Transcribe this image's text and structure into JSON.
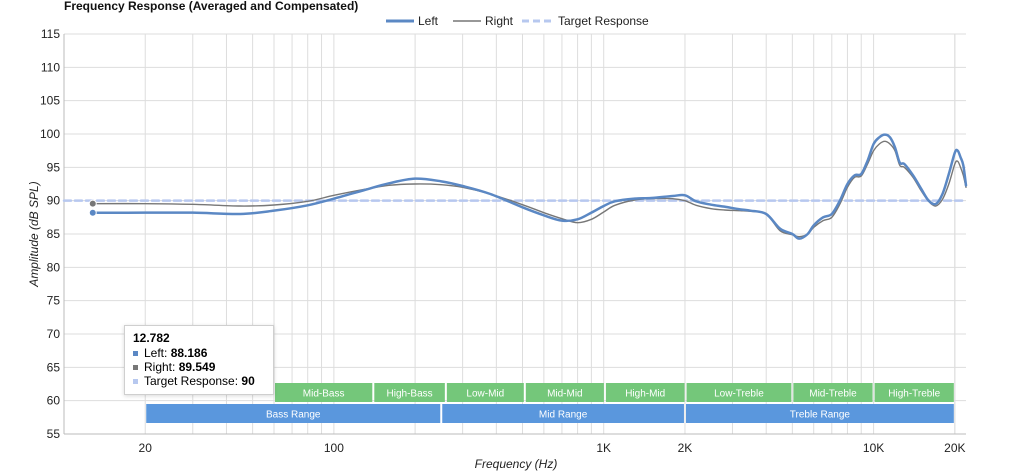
{
  "chart_data": {
    "type": "line",
    "title": "Frequency Response (Averaged and Compensated)",
    "xlabel": "Frequency (Hz)",
    "ylabel": "Amplitude (dB SPL)",
    "x_scale": "log",
    "xlim": [
      10,
      22000
    ],
    "ylim": [
      55,
      115
    ],
    "y_ticks": [
      55,
      60,
      65,
      70,
      75,
      80,
      85,
      90,
      95,
      100,
      105,
      110,
      115
    ],
    "x_tick_labels": [
      {
        "value": 20,
        "label": "20"
      },
      {
        "value": 100,
        "label": "100"
      },
      {
        "value": 1000,
        "label": "1K"
      },
      {
        "value": 2000,
        "label": "2K"
      },
      {
        "value": 10000,
        "label": "10K"
      },
      {
        "value": 20000,
        "label": "20K"
      }
    ],
    "grid": true,
    "legend_position": "top-center",
    "series": [
      {
        "name": "Left",
        "color": "#5b88c4",
        "style": "solid",
        "points": [
          [
            12.782,
            88.186
          ],
          [
            20,
            88.2
          ],
          [
            30,
            88.2
          ],
          [
            45,
            88.0
          ],
          [
            60,
            88.5
          ],
          [
            80,
            89.3
          ],
          [
            100,
            90.3
          ],
          [
            130,
            91.6
          ],
          [
            160,
            92.6
          ],
          [
            200,
            93.3
          ],
          [
            250,
            92.9
          ],
          [
            300,
            92.2
          ],
          [
            380,
            91.0
          ],
          [
            500,
            89.0
          ],
          [
            600,
            87.8
          ],
          [
            700,
            87.0
          ],
          [
            800,
            87.2
          ],
          [
            900,
            88.2
          ],
          [
            1000,
            89.2
          ],
          [
            1100,
            89.9
          ],
          [
            1300,
            90.3
          ],
          [
            1500,
            90.4
          ],
          [
            1800,
            90.7
          ],
          [
            2000,
            90.8
          ],
          [
            2200,
            89.9
          ],
          [
            2500,
            89.4
          ],
          [
            2800,
            89.1
          ],
          [
            3200,
            88.7
          ],
          [
            3500,
            88.5
          ],
          [
            4000,
            88.0
          ],
          [
            4500,
            85.8
          ],
          [
            5000,
            85.0
          ],
          [
            5300,
            84.3
          ],
          [
            5700,
            85.0
          ],
          [
            6000,
            86.3
          ],
          [
            6500,
            87.5
          ],
          [
            7000,
            88.0
          ],
          [
            7500,
            90.0
          ],
          [
            8000,
            92.5
          ],
          [
            8500,
            93.8
          ],
          [
            9000,
            94.0
          ],
          [
            9500,
            96.0
          ],
          [
            10000,
            98.5
          ],
          [
            10500,
            99.5
          ],
          [
            11000,
            99.9
          ],
          [
            11500,
            99.5
          ],
          [
            12000,
            98.0
          ],
          [
            12500,
            95.7
          ],
          [
            13000,
            95.5
          ],
          [
            14000,
            93.8
          ],
          [
            15000,
            91.8
          ],
          [
            16000,
            90.0
          ],
          [
            17000,
            89.5
          ],
          [
            18000,
            91.0
          ],
          [
            19000,
            94.0
          ],
          [
            20000,
            97.2
          ],
          [
            20500,
            97.5
          ],
          [
            21000,
            96.5
          ],
          [
            21500,
            95.3
          ],
          [
            22000,
            92.3
          ]
        ]
      },
      {
        "name": "Right",
        "color": "#777777",
        "style": "solid",
        "points": [
          [
            12.782,
            89.549
          ],
          [
            20,
            89.55
          ],
          [
            30,
            89.45
          ],
          [
            45,
            89.2
          ],
          [
            60,
            89.35
          ],
          [
            80,
            89.9
          ],
          [
            100,
            90.8
          ],
          [
            130,
            91.7
          ],
          [
            160,
            92.3
          ],
          [
            200,
            92.5
          ],
          [
            250,
            92.4
          ],
          [
            300,
            92.0
          ],
          [
            380,
            91.0
          ],
          [
            500,
            89.4
          ],
          [
            600,
            88.2
          ],
          [
            700,
            87.3
          ],
          [
            800,
            86.7
          ],
          [
            900,
            87.2
          ],
          [
            1000,
            88.3
          ],
          [
            1100,
            89.3
          ],
          [
            1300,
            90.1
          ],
          [
            1500,
            90.3
          ],
          [
            1800,
            90.3
          ],
          [
            2000,
            90.0
          ],
          [
            2200,
            89.3
          ],
          [
            2500,
            88.8
          ],
          [
            2800,
            88.6
          ],
          [
            3200,
            88.5
          ],
          [
            3500,
            88.4
          ],
          [
            4000,
            88.0
          ],
          [
            4500,
            85.5
          ],
          [
            5000,
            84.9
          ],
          [
            5300,
            84.6
          ],
          [
            5700,
            85.0
          ],
          [
            6000,
            86.0
          ],
          [
            6500,
            87.0
          ],
          [
            7000,
            87.5
          ],
          [
            7500,
            89.5
          ],
          [
            8000,
            92.0
          ],
          [
            8500,
            93.5
          ],
          [
            9000,
            93.7
          ],
          [
            9500,
            95.5
          ],
          [
            10000,
            97.5
          ],
          [
            10500,
            98.5
          ],
          [
            11000,
            98.9
          ],
          [
            11500,
            98.5
          ],
          [
            12000,
            97.5
          ],
          [
            12500,
            95.3
          ],
          [
            13000,
            95.0
          ],
          [
            14000,
            93.5
          ],
          [
            15000,
            91.5
          ],
          [
            16000,
            89.9
          ],
          [
            17000,
            89.2
          ],
          [
            18000,
            90.2
          ],
          [
            19000,
            92.5
          ],
          [
            20000,
            95.5
          ],
          [
            20500,
            95.9
          ],
          [
            21000,
            95.0
          ],
          [
            21500,
            93.8
          ],
          [
            22000,
            92.0
          ]
        ]
      },
      {
        "name": "Target Response",
        "color": "#b7c8ef",
        "style": "dashed",
        "points": [
          [
            10,
            90
          ],
          [
            22000,
            90
          ]
        ]
      }
    ],
    "bands": [
      {
        "label": "Mid-Bass",
        "from": 60,
        "to": 140,
        "row": "sub",
        "color": "#74c77a"
      },
      {
        "label": "High-Bass",
        "from": 140,
        "to": 260,
        "row": "sub",
        "color": "#74c77a"
      },
      {
        "label": "Low-Mid",
        "from": 260,
        "to": 510,
        "row": "sub",
        "color": "#74c77a"
      },
      {
        "label": "Mid-Mid",
        "from": 510,
        "to": 1010,
        "row": "sub",
        "color": "#74c77a"
      },
      {
        "label": "High-Mid",
        "from": 1010,
        "to": 2010,
        "row": "sub",
        "color": "#74c77a"
      },
      {
        "label": "Low-Treble",
        "from": 2010,
        "to": 5000,
        "row": "sub",
        "color": "#74c77a"
      },
      {
        "label": "Mid-Treble",
        "from": 5000,
        "to": 10000,
        "row": "sub",
        "color": "#74c77a"
      },
      {
        "label": "High-Treble",
        "from": 10000,
        "to": 20000,
        "row": "sub",
        "color": "#74c77a"
      },
      {
        "label": "Bass Range",
        "from": 20,
        "to": 250,
        "row": "main",
        "color": "#5a97dd"
      },
      {
        "label": "Mid Range",
        "from": 250,
        "to": 2000,
        "row": "main",
        "color": "#5a97dd"
      },
      {
        "label": "Treble Range",
        "from": 2000,
        "to": 20000,
        "row": "main",
        "color": "#5a97dd"
      }
    ]
  },
  "tooltip": {
    "x_value": "12.782",
    "rows": [
      {
        "label": "Left: ",
        "value": "88.186",
        "color": "#5b88c4"
      },
      {
        "label": "Right: ",
        "value": "89.549",
        "color": "#777777"
      },
      {
        "label": "Target Response: ",
        "value": "90",
        "color": "#b7c8ef"
      }
    ]
  },
  "colors": {
    "grid": "#dddddd",
    "axis": "#bbbbbb"
  }
}
